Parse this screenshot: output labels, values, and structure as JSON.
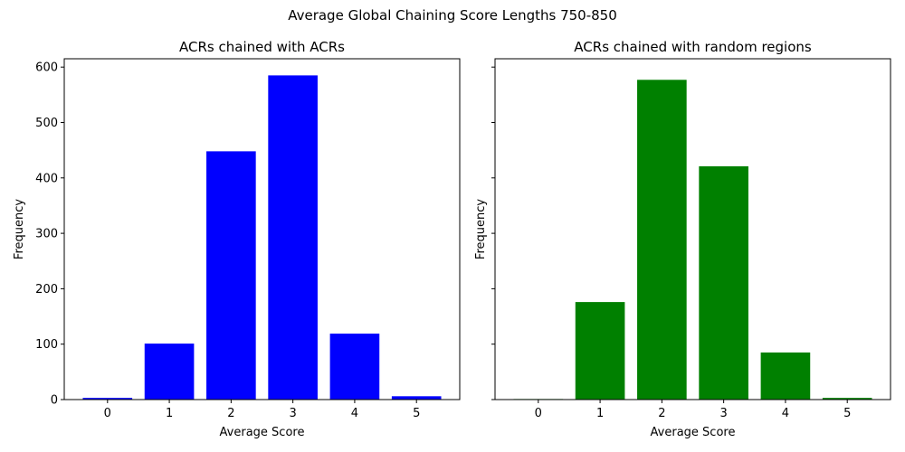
{
  "suptitle": "Average Global Chaining Score Lengths 750-850",
  "chart_data": [
    {
      "type": "bar",
      "title": "ACRs chained with ACRs",
      "xlabel": "Average Score",
      "ylabel": "Frequency",
      "categories": [
        "0",
        "1",
        "2",
        "3",
        "4",
        "5"
      ],
      "values": [
        3,
        101,
        448,
        585,
        119,
        6
      ],
      "color": "#0000ff",
      "xlim": [
        -0.7,
        5.7
      ],
      "ylim": [
        0,
        615
      ],
      "yticks": [
        0,
        100,
        200,
        300,
        400,
        500,
        600
      ],
      "show_ytick_labels": true,
      "grid": false
    },
    {
      "type": "bar",
      "title": "ACRs chained with random regions",
      "xlabel": "Average Score",
      "ylabel": "Frequency",
      "categories": [
        "0",
        "1",
        "2",
        "3",
        "4",
        "5"
      ],
      "values": [
        1,
        176,
        577,
        421,
        85,
        3
      ],
      "color": "#008000",
      "xlim": [
        -0.7,
        5.7
      ],
      "ylim": [
        0,
        615
      ],
      "yticks": [
        0,
        100,
        200,
        300,
        400,
        500,
        600
      ],
      "show_ytick_labels": false,
      "grid": false
    }
  ]
}
